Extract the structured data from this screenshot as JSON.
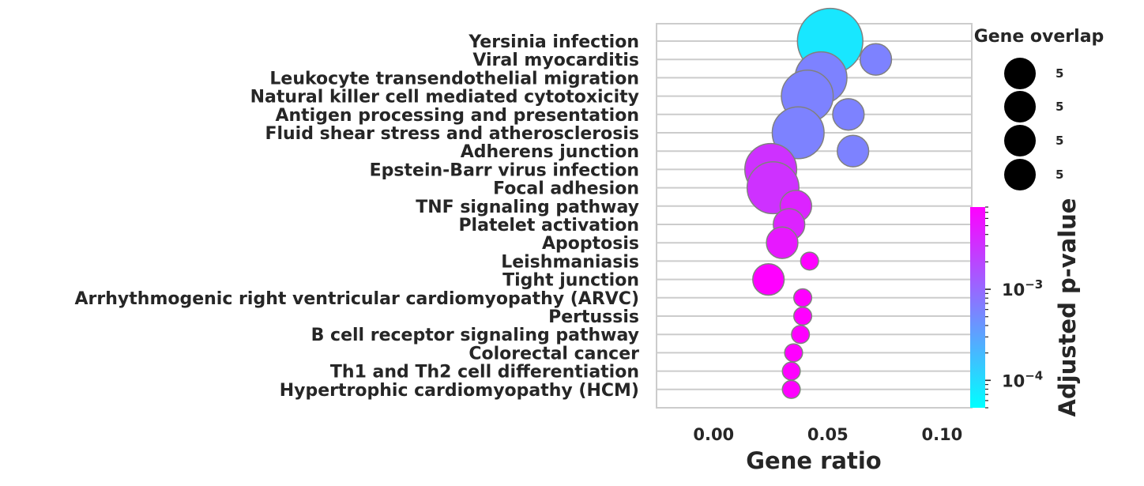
{
  "chart_data": {
    "type": "scatter",
    "xlabel": "Gene ratio",
    "xlim": [
      -0.025,
      0.113
    ],
    "xticks": [
      0.0,
      0.05,
      0.1
    ],
    "xtick_labels": [
      "0.00",
      "0.05",
      "0.10"
    ],
    "terms": [
      {
        "name": "Yersinia infection",
        "gene_ratio": 0.051,
        "overlap": 8,
        "padj": 8e-05
      },
      {
        "name": "Viral myocarditis",
        "gene_ratio": 0.071,
        "overlap": 3,
        "padj": 0.0006
      },
      {
        "name": "Leukocyte transendothelial migration",
        "gene_ratio": 0.047,
        "overlap": 6,
        "padj": 0.0006
      },
      {
        "name": "Natural killer cell mediated cytotoxicity",
        "gene_ratio": 0.041,
        "overlap": 6,
        "padj": 0.0006
      },
      {
        "name": "Antigen processing and presentation",
        "gene_ratio": 0.059,
        "overlap": 3,
        "padj": 0.0006
      },
      {
        "name": "Fluid shear stress and atherosclerosis",
        "gene_ratio": 0.037,
        "overlap": 6,
        "padj": 0.0006
      },
      {
        "name": "Adherens junction",
        "gene_ratio": 0.061,
        "overlap": 3,
        "padj": 0.0006
      },
      {
        "name": "Epstein-Barr virus infection",
        "gene_ratio": 0.025,
        "overlap": 6,
        "padj": 0.003
      },
      {
        "name": "Focal adhesion",
        "gene_ratio": 0.026,
        "overlap": 6,
        "padj": 0.003
      },
      {
        "name": "TNF signaling pathway",
        "gene_ratio": 0.036,
        "overlap": 3,
        "padj": 0.004
      },
      {
        "name": "Platelet activation",
        "gene_ratio": 0.033,
        "overlap": 3,
        "padj": 0.004
      },
      {
        "name": "Apoptosis",
        "gene_ratio": 0.03,
        "overlap": 3,
        "padj": 0.005
      },
      {
        "name": "Leishmaniasis",
        "gene_ratio": 0.042,
        "overlap": 1,
        "padj": 0.008
      },
      {
        "name": "Tight junction",
        "gene_ratio": 0.024,
        "overlap": 3,
        "padj": 0.008
      },
      {
        "name": "Arrhythmogenic right ventricular cardiomyopathy (ARVC)",
        "gene_ratio": 0.039,
        "overlap": 1,
        "padj": 0.008
      },
      {
        "name": "Pertussis",
        "gene_ratio": 0.039,
        "overlap": 1,
        "padj": 0.008
      },
      {
        "name": "B cell receptor signaling pathway",
        "gene_ratio": 0.038,
        "overlap": 1,
        "padj": 0.008
      },
      {
        "name": "Colorectal cancer",
        "gene_ratio": 0.035,
        "overlap": 1,
        "padj": 0.008
      },
      {
        "name": "Th1 and Th2 cell differentiation",
        "gene_ratio": 0.034,
        "overlap": 1,
        "padj": 0.008
      },
      {
        "name": "Hypertrophic cardiomyopathy (HCM)",
        "gene_ratio": 0.034,
        "overlap": 1,
        "padj": 0.008
      }
    ],
    "size_legend": {
      "title": "Gene overlap",
      "labels": [
        "5",
        "5",
        "5",
        "5"
      ]
    },
    "colorbar": {
      "title": "Adjusted p-value",
      "scale": "log",
      "range": [
        5e-05,
        0.008
      ],
      "colormap": "cool",
      "color_low": "#00ffff",
      "color_high": "#ff00ff",
      "ticks": [
        0.001,
        0.0001
      ],
      "tick_labels": [
        {
          "base": "10",
          "exp": "−3"
        },
        {
          "base": "10",
          "exp": "−4"
        }
      ]
    }
  }
}
